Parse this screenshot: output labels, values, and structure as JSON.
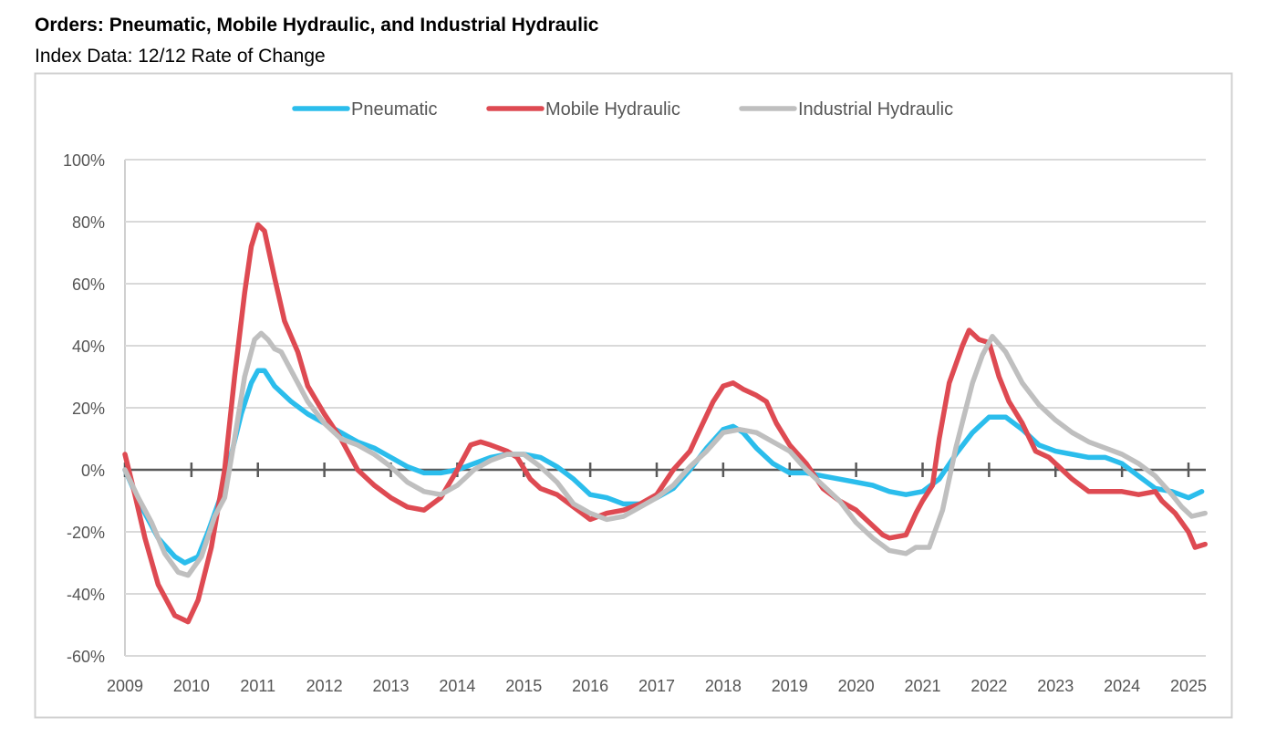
{
  "title": "Orders: Pneumatic, Mobile Hydraulic, and Industrial Hydraulic",
  "subtitle": "Index Data: 12/12 Rate of Change",
  "chart_data": {
    "type": "line",
    "title": "",
    "xlabel": "",
    "ylabel": "",
    "xlim": [
      2009,
      2025.25
    ],
    "ylim": [
      -60,
      100
    ],
    "y_ticks": [
      "-60%",
      "-40%",
      "-20%",
      "0%",
      "20%",
      "40%",
      "60%",
      "80%",
      "100%"
    ],
    "y_tick_values": [
      -60,
      -40,
      -20,
      0,
      20,
      40,
      60,
      80,
      100
    ],
    "x_ticks": [
      "2009",
      "2010",
      "2011",
      "2012",
      "2013",
      "2014",
      "2015",
      "2016",
      "2017",
      "2018",
      "2019",
      "2020",
      "2021",
      "2022",
      "2023",
      "2024",
      "2025"
    ],
    "grid": "horizontal",
    "legend": "top-center",
    "series": [
      {
        "name": "Pneumatic",
        "color": "#2bbdec",
        "points": [
          [
            2009.0,
            0
          ],
          [
            2009.25,
            -12
          ],
          [
            2009.5,
            -22
          ],
          [
            2009.75,
            -28
          ],
          [
            2009.9,
            -30
          ],
          [
            2010.1,
            -28
          ],
          [
            2010.25,
            -20
          ],
          [
            2010.5,
            -5
          ],
          [
            2010.6,
            5
          ],
          [
            2010.75,
            18
          ],
          [
            2010.9,
            28
          ],
          [
            2011.0,
            32
          ],
          [
            2011.1,
            32
          ],
          [
            2011.25,
            27
          ],
          [
            2011.5,
            22
          ],
          [
            2011.75,
            18
          ],
          [
            2012.0,
            15
          ],
          [
            2012.25,
            12
          ],
          [
            2012.5,
            9
          ],
          [
            2012.75,
            7
          ],
          [
            2013.0,
            4
          ],
          [
            2013.25,
            1
          ],
          [
            2013.5,
            -1
          ],
          [
            2013.75,
            -1
          ],
          [
            2014.0,
            0
          ],
          [
            2014.25,
            2
          ],
          [
            2014.5,
            4
          ],
          [
            2014.75,
            5
          ],
          [
            2015.0,
            5
          ],
          [
            2015.25,
            4
          ],
          [
            2015.5,
            1
          ],
          [
            2015.75,
            -3
          ],
          [
            2016.0,
            -8
          ],
          [
            2016.25,
            -9
          ],
          [
            2016.5,
            -11
          ],
          [
            2016.75,
            -11
          ],
          [
            2017.0,
            -9
          ],
          [
            2017.25,
            -6
          ],
          [
            2017.5,
            0
          ],
          [
            2017.75,
            7
          ],
          [
            2018.0,
            13
          ],
          [
            2018.15,
            14
          ],
          [
            2018.3,
            12
          ],
          [
            2018.5,
            7
          ],
          [
            2018.75,
            2
          ],
          [
            2019.0,
            -1
          ],
          [
            2019.25,
            -1
          ],
          [
            2019.5,
            -2
          ],
          [
            2019.75,
            -3
          ],
          [
            2020.0,
            -4
          ],
          [
            2020.25,
            -5
          ],
          [
            2020.5,
            -7
          ],
          [
            2020.75,
            -8
          ],
          [
            2021.0,
            -7
          ],
          [
            2021.25,
            -3
          ],
          [
            2021.5,
            5
          ],
          [
            2021.75,
            12
          ],
          [
            2022.0,
            17
          ],
          [
            2022.25,
            17
          ],
          [
            2022.5,
            13
          ],
          [
            2022.75,
            8
          ],
          [
            2023.0,
            6
          ],
          [
            2023.25,
            5
          ],
          [
            2023.5,
            4
          ],
          [
            2023.75,
            4
          ],
          [
            2024.0,
            2
          ],
          [
            2024.25,
            -2
          ],
          [
            2024.5,
            -6
          ],
          [
            2024.75,
            -7
          ],
          [
            2025.0,
            -9
          ],
          [
            2025.2,
            -7
          ]
        ]
      },
      {
        "name": "Mobile Hydraulic",
        "color": "#de4a52",
        "points": [
          [
            2009.0,
            5
          ],
          [
            2009.15,
            -8
          ],
          [
            2009.3,
            -22
          ],
          [
            2009.5,
            -37
          ],
          [
            2009.75,
            -47
          ],
          [
            2009.95,
            -49
          ],
          [
            2010.1,
            -42
          ],
          [
            2010.3,
            -25
          ],
          [
            2010.5,
            0
          ],
          [
            2010.65,
            30
          ],
          [
            2010.8,
            57
          ],
          [
            2010.9,
            72
          ],
          [
            2011.0,
            79
          ],
          [
            2011.1,
            77
          ],
          [
            2011.25,
            62
          ],
          [
            2011.4,
            48
          ],
          [
            2011.6,
            38
          ],
          [
            2011.75,
            27
          ],
          [
            2012.0,
            18
          ],
          [
            2012.25,
            10
          ],
          [
            2012.5,
            0
          ],
          [
            2012.75,
            -5
          ],
          [
            2013.0,
            -9
          ],
          [
            2013.25,
            -12
          ],
          [
            2013.5,
            -13
          ],
          [
            2013.75,
            -9
          ],
          [
            2014.0,
            0
          ],
          [
            2014.2,
            8
          ],
          [
            2014.35,
            9
          ],
          [
            2014.5,
            8
          ],
          [
            2014.75,
            6
          ],
          [
            2014.9,
            4
          ],
          [
            2015.1,
            -3
          ],
          [
            2015.25,
            -6
          ],
          [
            2015.5,
            -8
          ],
          [
            2015.75,
            -12
          ],
          [
            2016.0,
            -16
          ],
          [
            2016.25,
            -14
          ],
          [
            2016.5,
            -13
          ],
          [
            2016.75,
            -11
          ],
          [
            2017.0,
            -8
          ],
          [
            2017.25,
            0
          ],
          [
            2017.5,
            6
          ],
          [
            2017.65,
            13
          ],
          [
            2017.85,
            22
          ],
          [
            2018.0,
            27
          ],
          [
            2018.15,
            28
          ],
          [
            2018.3,
            26
          ],
          [
            2018.5,
            24
          ],
          [
            2018.65,
            22
          ],
          [
            2018.8,
            15
          ],
          [
            2019.0,
            8
          ],
          [
            2019.25,
            2
          ],
          [
            2019.5,
            -6
          ],
          [
            2019.75,
            -10
          ],
          [
            2020.0,
            -13
          ],
          [
            2020.25,
            -18
          ],
          [
            2020.4,
            -21
          ],
          [
            2020.5,
            -22
          ],
          [
            2020.75,
            -21
          ],
          [
            2020.9,
            -14
          ],
          [
            2021.0,
            -10
          ],
          [
            2021.15,
            -5
          ],
          [
            2021.25,
            10
          ],
          [
            2021.4,
            28
          ],
          [
            2021.6,
            40
          ],
          [
            2021.7,
            45
          ],
          [
            2021.85,
            42
          ],
          [
            2022.0,
            41
          ],
          [
            2022.15,
            30
          ],
          [
            2022.3,
            22
          ],
          [
            2022.5,
            15
          ],
          [
            2022.7,
            6
          ],
          [
            2022.9,
            4
          ],
          [
            2023.0,
            2
          ],
          [
            2023.25,
            -3
          ],
          [
            2023.5,
            -7
          ],
          [
            2023.75,
            -7
          ],
          [
            2024.0,
            -7
          ],
          [
            2024.25,
            -8
          ],
          [
            2024.5,
            -7
          ],
          [
            2024.6,
            -10
          ],
          [
            2024.8,
            -14
          ],
          [
            2025.0,
            -20
          ],
          [
            2025.1,
            -25
          ],
          [
            2025.25,
            -24
          ]
        ]
      },
      {
        "name": "Industrial Hydraulic",
        "color": "#bfbfbf",
        "points": [
          [
            2009.0,
            0
          ],
          [
            2009.2,
            -9
          ],
          [
            2009.4,
            -17
          ],
          [
            2009.6,
            -27
          ],
          [
            2009.8,
            -33
          ],
          [
            2009.95,
            -34
          ],
          [
            2010.15,
            -28
          ],
          [
            2010.35,
            -15
          ],
          [
            2010.5,
            -9
          ],
          [
            2010.65,
            10
          ],
          [
            2010.8,
            30
          ],
          [
            2010.95,
            42
          ],
          [
            2011.05,
            44
          ],
          [
            2011.15,
            42
          ],
          [
            2011.25,
            39
          ],
          [
            2011.35,
            38
          ],
          [
            2011.5,
            32
          ],
          [
            2011.75,
            22
          ],
          [
            2012.0,
            15
          ],
          [
            2012.25,
            10
          ],
          [
            2012.5,
            8
          ],
          [
            2012.75,
            5
          ],
          [
            2013.0,
            1
          ],
          [
            2013.25,
            -4
          ],
          [
            2013.5,
            -7
          ],
          [
            2013.75,
            -8
          ],
          [
            2014.0,
            -5
          ],
          [
            2014.25,
            0
          ],
          [
            2014.5,
            3
          ],
          [
            2014.75,
            5
          ],
          [
            2015.0,
            5
          ],
          [
            2015.25,
            1
          ],
          [
            2015.5,
            -4
          ],
          [
            2015.75,
            -11
          ],
          [
            2016.0,
            -14
          ],
          [
            2016.25,
            -16
          ],
          [
            2016.5,
            -15
          ],
          [
            2016.75,
            -12
          ],
          [
            2017.0,
            -9
          ],
          [
            2017.25,
            -5
          ],
          [
            2017.5,
            1
          ],
          [
            2017.75,
            6
          ],
          [
            2018.0,
            12
          ],
          [
            2018.25,
            13
          ],
          [
            2018.5,
            12
          ],
          [
            2018.75,
            9
          ],
          [
            2019.0,
            6
          ],
          [
            2019.25,
            0
          ],
          [
            2019.5,
            -5
          ],
          [
            2019.75,
            -10
          ],
          [
            2020.0,
            -17
          ],
          [
            2020.25,
            -22
          ],
          [
            2020.5,
            -26
          ],
          [
            2020.75,
            -27
          ],
          [
            2020.9,
            -25
          ],
          [
            2021.1,
            -25
          ],
          [
            2021.3,
            -13
          ],
          [
            2021.5,
            7
          ],
          [
            2021.75,
            28
          ],
          [
            2021.9,
            37
          ],
          [
            2022.05,
            43
          ],
          [
            2022.25,
            38
          ],
          [
            2022.5,
            28
          ],
          [
            2022.75,
            21
          ],
          [
            2023.0,
            16
          ],
          [
            2023.25,
            12
          ],
          [
            2023.5,
            9
          ],
          [
            2023.75,
            7
          ],
          [
            2024.0,
            5
          ],
          [
            2024.25,
            2
          ],
          [
            2024.5,
            -2
          ],
          [
            2024.75,
            -8
          ],
          [
            2024.9,
            -12
          ],
          [
            2025.05,
            -15
          ],
          [
            2025.25,
            -14
          ]
        ]
      }
    ]
  }
}
